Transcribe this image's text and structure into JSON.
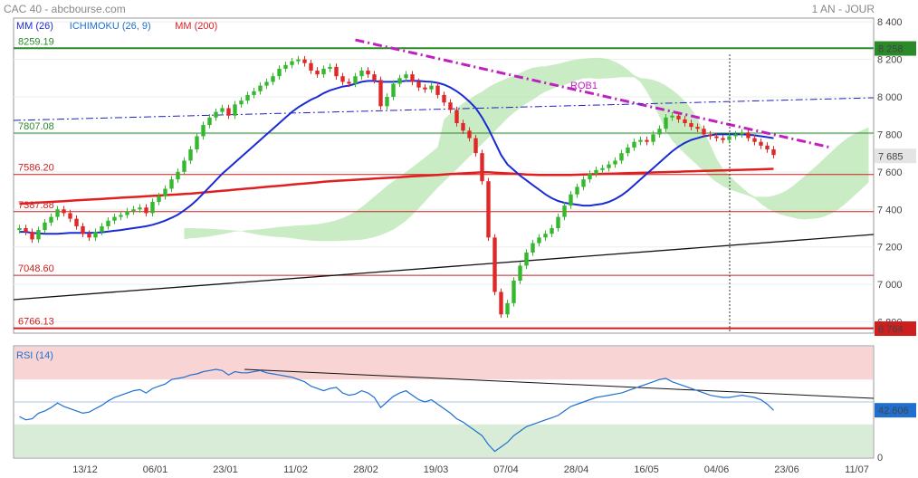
{
  "header": {
    "title": "CAC 40 - abcbourse.com",
    "period": "1 AN - JOUR"
  },
  "legend": [
    {
      "label": "MM (26)",
      "color": "#1a2bd6"
    },
    {
      "label": "ICHIMOKU (26, 9)",
      "color": "#1f6fd0"
    },
    {
      "label": "MM (200)",
      "color": "#e02020"
    }
  ],
  "levels": [
    {
      "label": "8259.19",
      "value": 8259.19,
      "color": "#2a8a2a"
    },
    {
      "label": "7807.08",
      "value": 7807.08,
      "color": "#2a8a2a"
    },
    {
      "label": "7586.20",
      "value": 7586.2,
      "color": "#cc1f1f"
    },
    {
      "label": "7387.88",
      "value": 7387.88,
      "color": "#cc1f1f"
    },
    {
      "label": "7048.60",
      "value": 7048.6,
      "color": "#cc1f1f"
    },
    {
      "label": "6766.13",
      "value": 6766.13,
      "color": "#cc1f1f"
    }
  ],
  "annotation": {
    "label": "ROB1",
    "color": "#c020c0"
  },
  "price_badges": [
    {
      "label": "8 258",
      "value": 8258,
      "bg": "#2a8a2a",
      "fg": "#ffffff"
    },
    {
      "label": "7 685",
      "value": 7685,
      "bg": "#e4e4e4",
      "fg": "#222222"
    },
    {
      "label": "6 764",
      "value": 6764,
      "bg": "#cc1f1f",
      "fg": "#ffffff"
    }
  ],
  "rsi": {
    "label": "RSI (14)",
    "value_label": "42.606",
    "bg": "#1f6fd0"
  },
  "chart_data": [
    {
      "type": "line",
      "title": "CAC 40",
      "y_axis": {
        "ylim": [
          6740,
          8420
        ],
        "ticks": [
          {
            "value": 8400,
            "label": "8 400"
          },
          {
            "value": 8200,
            "label": "8 200"
          },
          {
            "value": 8000,
            "label": "8 000"
          },
          {
            "value": 7800,
            "label": "7 800"
          },
          {
            "value": 7600,
            "label": "7 600"
          },
          {
            "value": 7400,
            "label": "7 400"
          },
          {
            "value": 7200,
            "label": "7 200"
          },
          {
            "value": 7000,
            "label": "7 000"
          },
          {
            "value": 6800,
            "label": "6 800"
          }
        ]
      },
      "x_axis": {
        "categories": [
          "13/12",
          "06/01",
          "23/01",
          "11/02",
          "28/02",
          "19/03",
          "07/04",
          "28/04",
          "16/05",
          "04/06",
          "23/06",
          "11/07"
        ]
      },
      "grid": true,
      "series": [
        {
          "name": "CAC 40",
          "kind": "candlestick",
          "close": [
            7300,
            7280,
            7240,
            7290,
            7330,
            7360,
            7400,
            7380,
            7350,
            7310,
            7270,
            7250,
            7280,
            7310,
            7340,
            7360,
            7370,
            7390,
            7400,
            7410,
            7380,
            7440,
            7470,
            7510,
            7560,
            7600,
            7660,
            7720,
            7790,
            7850,
            7890,
            7920,
            7940,
            7900,
            7960,
            7980,
            8010,
            8030,
            8060,
            8080,
            8110,
            8150,
            8170,
            8190,
            8200,
            8180,
            8140,
            8120,
            8150,
            8160,
            8110,
            8080,
            8070,
            8110,
            8140,
            8120,
            8090,
            7950,
            8000,
            8070,
            8100,
            8120,
            8080,
            8050,
            8040,
            8060,
            8010,
            7970,
            7930,
            7860,
            7820,
            7780,
            7700,
            7550,
            7250,
            6960,
            6840,
            6900,
            7020,
            7100,
            7170,
            7220,
            7250,
            7270,
            7300,
            7360,
            7420,
            7480,
            7520,
            7560,
            7590,
            7610,
            7620,
            7640,
            7660,
            7700,
            7730,
            7760,
            7770,
            7760,
            7800,
            7830,
            7890,
            7900,
            7880,
            7860,
            7840,
            7830,
            7800,
            7790,
            7780,
            7770,
            7790,
            7800,
            7810,
            7780,
            7760,
            7740,
            7720,
            7690
          ],
          "ma26": [
            7280,
            7280,
            7275,
            7272,
            7270,
            7270,
            7270,
            7272,
            7275,
            7275,
            7275,
            7275,
            7276,
            7278,
            7282,
            7286,
            7290,
            7295,
            7300,
            7305,
            7310,
            7318,
            7328,
            7340,
            7355,
            7372,
            7395,
            7420,
            7450,
            7485,
            7520,
            7555,
            7590,
            7620,
            7650,
            7680,
            7710,
            7740,
            7770,
            7800,
            7830,
            7860,
            7890,
            7920,
            7945,
            7965,
            7985,
            8000,
            8020,
            8035,
            8045,
            8055,
            8060,
            8070,
            8080,
            8085,
            8085,
            8080,
            8080,
            8080,
            8082,
            8085,
            8085,
            8085,
            8082,
            8080,
            8075,
            8065,
            8050,
            8030,
            8005,
            7975,
            7940,
            7890,
            7830,
            7760,
            7690,
            7640,
            7610,
            7580,
            7555,
            7530,
            7505,
            7480,
            7460,
            7445,
            7435,
            7430,
            7425,
            7420,
            7420,
            7425,
            7430,
            7440,
            7455,
            7475,
            7500,
            7530,
            7560,
            7590,
            7620,
            7650,
            7680,
            7710,
            7735,
            7755,
            7770,
            7780,
            7790,
            7795,
            7800,
            7800,
            7800,
            7800,
            7800,
            7798,
            7795,
            7790,
            7785,
            7780
          ],
          "ma200": [
            7430,
            7432,
            7434,
            7436,
            7438,
            7440,
            7442,
            7444,
            7446,
            7448,
            7450,
            7452,
            7454,
            7456,
            7458,
            7460,
            7462,
            7464,
            7466,
            7468,
            7470,
            7472,
            7474,
            7476,
            7478,
            7480,
            7482,
            7484,
            7487,
            7490,
            7493,
            7496,
            7499,
            7502,
            7505,
            7508,
            7511,
            7514,
            7517,
            7520,
            7523,
            7526,
            7529,
            7532,
            7535,
            7538,
            7541,
            7544,
            7547,
            7550,
            7552,
            7554,
            7556,
            7558,
            7560,
            7562,
            7564,
            7566,
            7568,
            7570,
            7572,
            7574,
            7576,
            7578,
            7580,
            7582,
            7584,
            7586,
            7588,
            7590,
            7592,
            7594,
            7596,
            7598,
            7598,
            7596,
            7594,
            7592,
            7590,
            7588,
            7586,
            7585,
            7584,
            7584,
            7584,
            7584,
            7584,
            7584,
            7585,
            7586,
            7587,
            7588,
            7589,
            7590,
            7591,
            7592,
            7593,
            7594,
            7595,
            7596,
            7597,
            7598,
            7599,
            7600,
            7601,
            7602,
            7603,
            7604,
            7605,
            7606,
            7607,
            7608,
            7609,
            7610,
            7611,
            7612,
            7613,
            7614,
            7615,
            7616
          ]
        },
        {
          "name": "ROB1",
          "kind": "trendline",
          "x": [
            53,
            128
          ],
          "y": [
            8304,
            7730
          ]
        }
      ]
    },
    {
      "type": "line",
      "title": "RSI (14)",
      "y_axis": {
        "ylim": [
          0,
          100
        ],
        "ticks": [
          {
            "value": 0,
            "label": "0"
          }
        ]
      },
      "series": [
        {
          "name": "RSI (14)",
          "values": [
            37,
            34,
            35,
            40,
            42,
            45,
            49,
            46,
            44,
            42,
            40,
            41,
            44,
            47,
            51,
            54,
            56,
            58,
            60,
            61,
            58,
            62,
            64,
            66,
            70,
            71,
            72,
            74,
            75,
            77,
            78,
            79,
            78,
            74,
            77,
            76,
            76,
            77,
            78,
            76,
            75,
            74,
            73,
            72,
            70,
            68,
            64,
            62,
            60,
            62,
            63,
            58,
            56,
            57,
            60,
            58,
            54,
            45,
            50,
            55,
            58,
            60,
            56,
            52,
            50,
            52,
            48,
            44,
            40,
            35,
            32,
            28,
            24,
            20,
            12,
            6,
            10,
            14,
            20,
            24,
            28,
            30,
            32,
            34,
            36,
            38,
            42,
            46,
            48,
            50,
            52,
            54,
            55,
            56,
            57,
            58,
            60,
            62,
            64,
            66,
            68,
            70,
            71,
            68,
            66,
            64,
            62,
            60,
            58,
            56,
            55,
            54,
            54,
            55,
            56,
            55,
            54,
            52,
            48,
            42.6
          ]
        }
      ]
    }
  ]
}
